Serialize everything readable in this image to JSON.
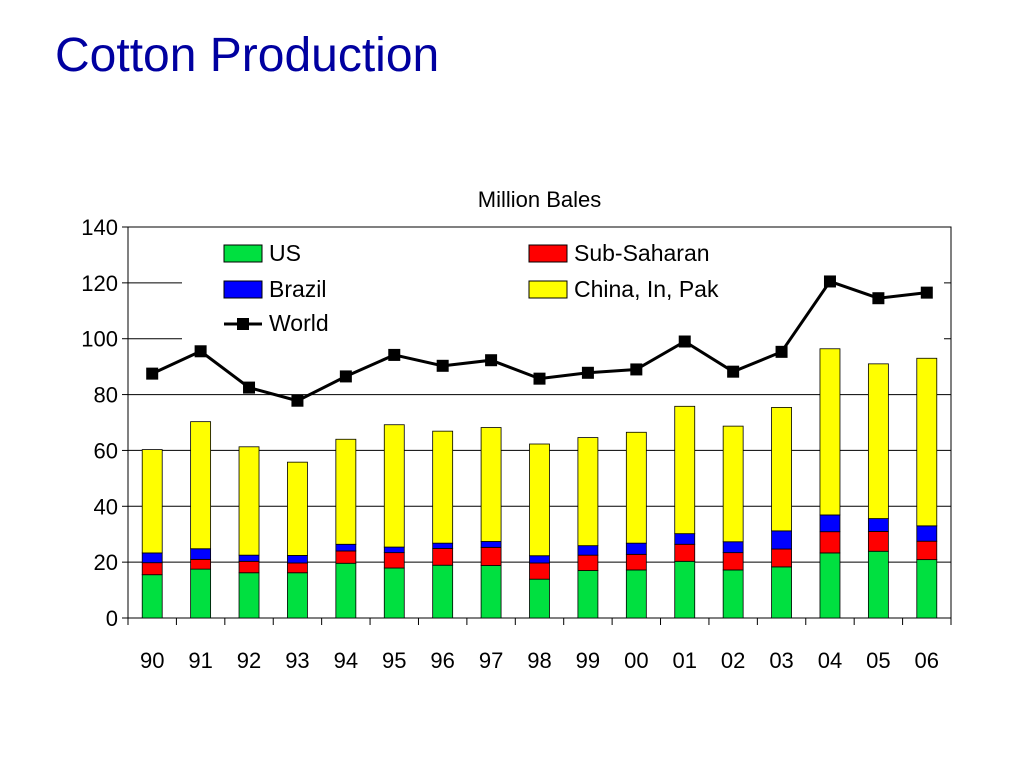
{
  "slide": {
    "title": "Cotton Production"
  },
  "chart_data": {
    "type": "bar",
    "title": "Million Bales",
    "xlabel": "",
    "ylabel": "",
    "ylim": [
      0,
      140
    ],
    "yticks": [
      0,
      20,
      40,
      60,
      80,
      100,
      120,
      140
    ],
    "grid": true,
    "legend_position": "top",
    "categories": [
      "90",
      "91",
      "92",
      "93",
      "94",
      "95",
      "96",
      "97",
      "98",
      "99",
      "00",
      "01",
      "02",
      "03",
      "04",
      "05",
      "06"
    ],
    "stacked": true,
    "series": [
      {
        "name": "US",
        "kind": "bar",
        "color": "#00e040",
        "values": [
          15.5,
          17.5,
          16.2,
          16.2,
          19.6,
          17.9,
          18.9,
          18.8,
          13.9,
          17.0,
          17.2,
          20.3,
          17.2,
          18.3,
          23.3,
          23.9,
          20.9
        ]
      },
      {
        "name": "Sub-Saharan",
        "kind": "bar",
        "color": "#ff0000",
        "values": [
          4.3,
          3.5,
          4.1,
          3.5,
          4.4,
          5.5,
          6.0,
          6.5,
          5.8,
          5.5,
          5.6,
          6.1,
          6.2,
          6.4,
          7.6,
          7.1,
          6.6
        ]
      },
      {
        "name": "Brazil",
        "kind": "bar",
        "color": "#0000ff",
        "values": [
          3.5,
          3.8,
          2.2,
          2.7,
          2.4,
          2.0,
          1.9,
          2.1,
          2.6,
          3.4,
          4.0,
          3.8,
          3.9,
          6.5,
          6.0,
          4.6,
          5.5
        ]
      },
      {
        "name": "China, In, Pak",
        "kind": "bar",
        "color": "#ffff00",
        "values": [
          37.0,
          45.5,
          38.8,
          33.4,
          37.6,
          43.8,
          40.1,
          40.8,
          40.0,
          38.7,
          39.7,
          45.6,
          41.4,
          44.2,
          59.5,
          55.4,
          60.0
        ]
      },
      {
        "name": "World",
        "kind": "line",
        "color": "#000000",
        "values": [
          87.5,
          95.5,
          82.5,
          77.8,
          86.5,
          94.2,
          90.3,
          92.3,
          85.7,
          87.8,
          89.0,
          99.0,
          88.2,
          95.3,
          120.5,
          114.5,
          116.5
        ]
      }
    ]
  }
}
